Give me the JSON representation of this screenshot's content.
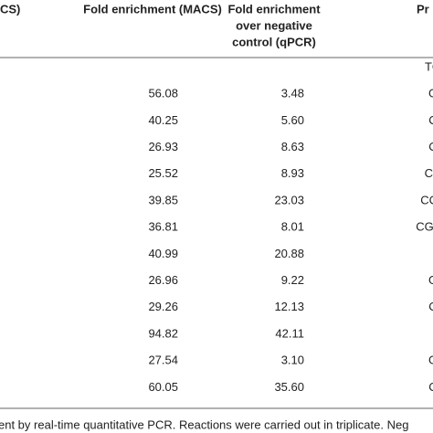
{
  "table": {
    "header": [
      "CS)",
      "Fold enrichment (MACS)",
      [
        "Fold enrichment",
        "over negative",
        "control (qPCR)"
      ],
      "Pr"
    ],
    "rows": [
      [
        "",
        "",
        "TG"
      ],
      [
        "56.08",
        "3.48",
        "G"
      ],
      [
        "40.25",
        "5.60",
        "C"
      ],
      [
        "26.93",
        "8.63",
        "C"
      ],
      [
        "25.52",
        "8.93",
        "CC"
      ],
      [
        "39.85",
        "23.03",
        "CCA"
      ],
      [
        "36.81",
        "8.01",
        "CGCA"
      ],
      [
        "40.99",
        "20.88",
        ""
      ],
      [
        "26.96",
        "9.22",
        "G"
      ],
      [
        "29.26",
        "12.13",
        "C"
      ],
      [
        "94.82",
        "42.11",
        ""
      ],
      [
        "27.54",
        "3.10",
        "G"
      ],
      [
        "60.05",
        "35.60",
        "C"
      ]
    ],
    "footnote": "ent by real-time quantitative PCR. Reactions were carried out in triplicate. Neg"
  }
}
